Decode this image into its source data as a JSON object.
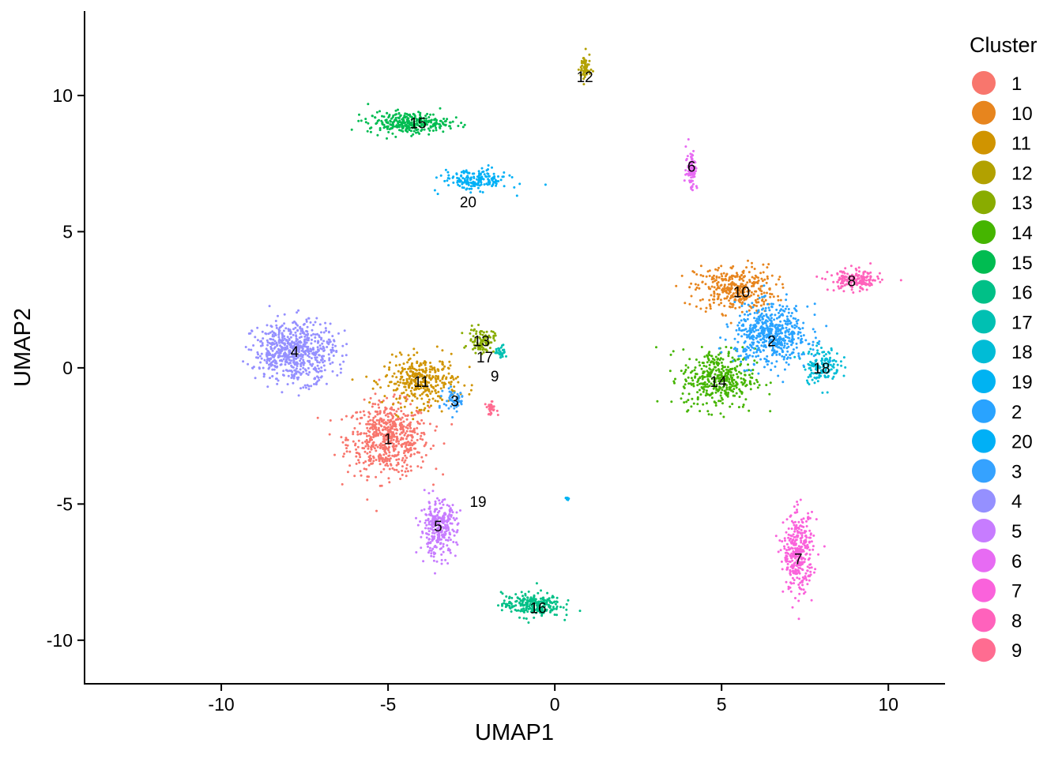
{
  "chart_data": {
    "type": "scatter",
    "title": "",
    "xlabel": "UMAP1",
    "ylabel": "UMAP2",
    "xlim": [
      -14.1,
      11.7
    ],
    "ylim": [
      -11.6,
      13.1
    ],
    "xticks": [
      -10,
      -5,
      0,
      5,
      10
    ],
    "yticks": [
      -10,
      -5,
      0,
      5,
      10
    ],
    "grid": false,
    "legend": {
      "title": "Cluster",
      "placement": "right"
    },
    "series": [
      {
        "name": "1",
        "color": "#F8766D",
        "cx": -5.0,
        "cy": -2.6,
        "label": "1",
        "lx": -5.0,
        "ly": -2.6
      },
      {
        "name": "10",
        "color": "#E7851E",
        "cx": 5.4,
        "cy": 2.9,
        "label": "10",
        "lx": 5.6,
        "ly": 2.8
      },
      {
        "name": "11",
        "color": "#D09400",
        "cx": -4.0,
        "cy": -0.5,
        "label": "11",
        "lx": -4.0,
        "ly": -0.5
      },
      {
        "name": "12",
        "color": "#B2A100",
        "cx": 0.9,
        "cy": 11.0,
        "label": "12",
        "lx": 0.9,
        "ly": 10.7
      },
      {
        "name": "13",
        "color": "#89AC00",
        "cx": -2.2,
        "cy": 1.0,
        "label": "13",
        "lx": -2.2,
        "ly": 1.0
      },
      {
        "name": "14",
        "color": "#45B500",
        "cx": 4.9,
        "cy": -0.4,
        "label": "14",
        "lx": 4.9,
        "ly": -0.5
      },
      {
        "name": "15",
        "color": "#00BC51",
        "cx": -4.4,
        "cy": 9.0,
        "label": "15",
        "lx": -4.1,
        "ly": 9.0
      },
      {
        "name": "16",
        "color": "#00C087",
        "cx": -0.7,
        "cy": -8.7,
        "label": "16",
        "lx": -0.5,
        "ly": -8.8
      },
      {
        "name": "17",
        "color": "#00C0B2",
        "cx": -1.6,
        "cy": 0.6,
        "label": "17",
        "lx": -2.1,
        "ly": 0.4
      },
      {
        "name": "18",
        "color": "#00BCD6",
        "cx": 8.0,
        "cy": 0.1,
        "label": "18",
        "lx": 8.0,
        "ly": 0.0
      },
      {
        "name": "19",
        "color": "#00B3F2",
        "cx": 0.35,
        "cy": -4.8,
        "label": "19",
        "lx": -2.3,
        "ly": -4.9
      },
      {
        "name": "2",
        "color": "#29A3FF",
        "cx": 6.5,
        "cy": 1.2,
        "label": "2",
        "lx": 6.5,
        "ly": 1.0
      },
      {
        "name": "20",
        "color": "#9C8DFF",
        "cx": -2.4,
        "cy": 6.9,
        "label": "20",
        "lx": -2.6,
        "ly": 6.1
      },
      {
        "name": "3",
        "color": "#D277FF",
        "cx": -3.0,
        "cy": -1.2,
        "label": "3",
        "lx": -3.0,
        "ly": -1.2
      },
      {
        "name": "4",
        "color": "#F166E8",
        "cx": -7.8,
        "cy": 0.6,
        "label": "4",
        "lx": -7.8,
        "ly": 0.6
      },
      {
        "name": "5",
        "color": "#FF61C7",
        "cx": -3.5,
        "cy": -5.9,
        "label": "5",
        "lx": -3.5,
        "ly": -5.8
      },
      {
        "name": "6",
        "color": "#FF689E",
        "cx": 4.1,
        "cy": 7.3,
        "label": "6",
        "lx": 4.1,
        "ly": 7.4
      },
      {
        "name": "7",
        "color": "#F8766D",
        "cx": 7.3,
        "cy": -6.8,
        "label": "7",
        "lx": 7.3,
        "ly": -7.0
      },
      {
        "name": "8",
        "color": "#F8766D",
        "cx": 9.0,
        "cy": 3.2,
        "label": "8",
        "lx": 8.9,
        "ly": 3.2
      },
      {
        "name": "9",
        "color": "#F8766D",
        "cx": -1.9,
        "cy": -1.5,
        "label": "9",
        "lx": -1.8,
        "ly": -0.3
      }
    ],
    "legend_entries": [
      {
        "label": "1",
        "color": "#F8766D"
      },
      {
        "label": "10",
        "color": "#E7851E"
      },
      {
        "label": "11",
        "color": "#D09400"
      },
      {
        "label": "12",
        "color": "#B2A100"
      },
      {
        "label": "13",
        "color": "#89AC00"
      },
      {
        "label": "14",
        "color": "#45B500"
      },
      {
        "label": "15",
        "color": "#00BC51"
      },
      {
        "label": "16",
        "color": "#00C087"
      },
      {
        "label": "17",
        "color": "#00C0B2"
      },
      {
        "label": "18",
        "color": "#00BCD6"
      },
      {
        "label": "19",
        "color": "#00B3F2"
      },
      {
        "label": "2",
        "color": "#29A3FF"
      },
      {
        "label": "20",
        "color": "#00B0F6"
      },
      {
        "label": "3",
        "color": "#35A2FF"
      },
      {
        "label": "4",
        "color": "#9590FF"
      },
      {
        "label": "5",
        "color": "#C77CFF"
      },
      {
        "label": "6",
        "color": "#E76BF3"
      },
      {
        "label": "7",
        "color": "#FA62DB"
      },
      {
        "label": "8",
        "color": "#FF62BC"
      },
      {
        "label": "9",
        "color": "#FF6C91"
      }
    ]
  }
}
